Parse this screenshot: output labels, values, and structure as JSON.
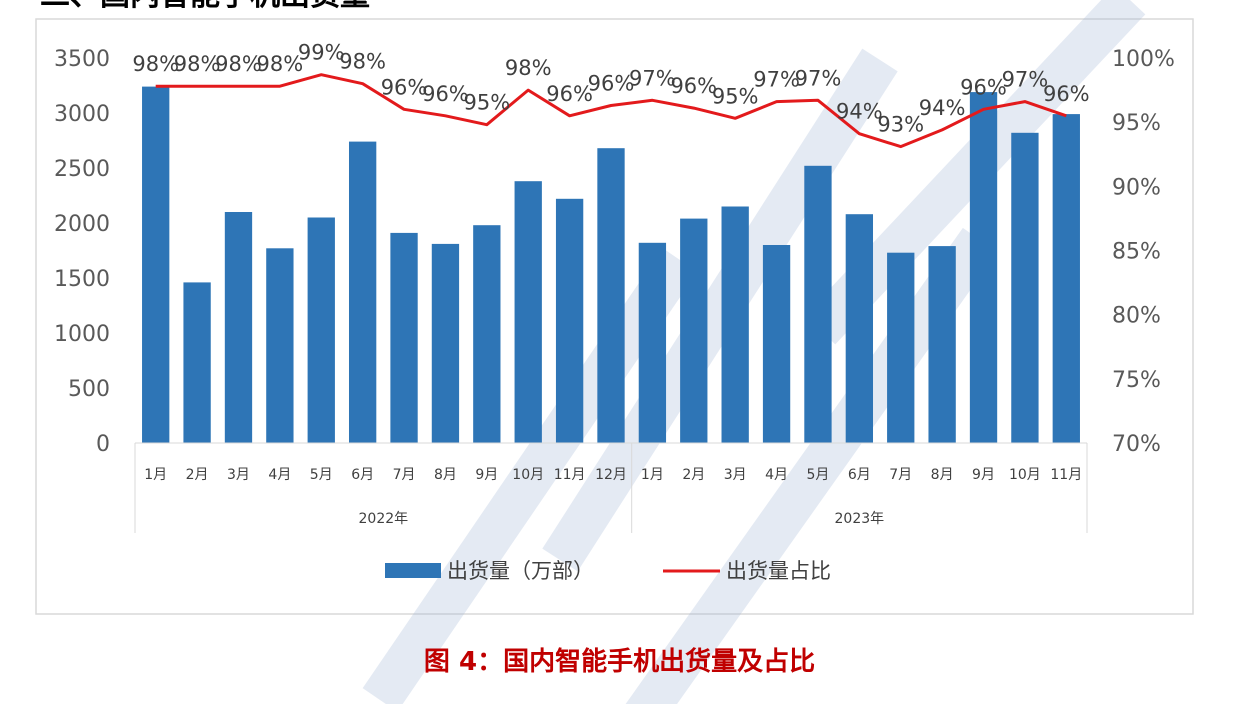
{
  "colors": {
    "bar": "#2E75B6",
    "line": "#E31A1C",
    "caption": "#C00000",
    "frame": "#D9D9D9",
    "watermark": "#9DB2D4"
  },
  "top_cut_text": "二、国内智能手机出货量",
  "caption": "图 4：国内智能手机出货量及占比",
  "chart_data": {
    "type": "bar+line",
    "categories": [
      "1月",
      "2月",
      "3月",
      "4月",
      "5月",
      "6月",
      "7月",
      "8月",
      "9月",
      "10月",
      "11月",
      "12月",
      "1月",
      "2月",
      "3月",
      "4月",
      "5月",
      "6月",
      "7月",
      "8月",
      "9月",
      "10月",
      "11月"
    ],
    "groups": [
      {
        "label": "2022年",
        "count": 12
      },
      {
        "label": "2023年",
        "count": 11
      }
    ],
    "series": [
      {
        "name": "出货量（万部）",
        "type": "bar",
        "axis": "left",
        "values": [
          3240,
          1460,
          2100,
          1770,
          2050,
          2740,
          1910,
          1810,
          1980,
          2380,
          2220,
          2680,
          1820,
          2040,
          2150,
          1800,
          2520,
          2080,
          1730,
          1790,
          3190,
          2820,
          2990
        ]
      },
      {
        "name": "出货量占比",
        "type": "line",
        "axis": "right",
        "values": [
          97.8,
          97.8,
          97.8,
          97.8,
          98.7,
          98.0,
          96.0,
          95.5,
          94.8,
          97.5,
          95.5,
          96.3,
          96.7,
          96.1,
          95.3,
          96.6,
          96.7,
          94.1,
          93.1,
          94.4,
          96.0,
          96.6,
          95.5
        ],
        "labels": [
          "98%",
          "98%",
          "98%",
          "98%",
          "99%",
          "98%",
          "96%",
          "96%",
          "95%",
          "98%",
          "96%",
          "96%",
          "97%",
          "96%",
          "95%",
          "97%",
          "97%",
          "94%",
          "93%",
          "94%",
          "96%",
          "97%",
          "96%"
        ]
      }
    ],
    "y_left": {
      "min": 0,
      "max": 3500,
      "step": 500,
      "ticks": [
        "0",
        "500",
        "1000",
        "1500",
        "2000",
        "2500",
        "3000",
        "3500"
      ]
    },
    "y_right": {
      "min": 70,
      "max": 100,
      "step": 5,
      "ticks": [
        "70%",
        "75%",
        "80%",
        "85%",
        "90%",
        "95%",
        "100%"
      ]
    },
    "legend": {
      "placement": "bottom"
    },
    "grid": false
  }
}
